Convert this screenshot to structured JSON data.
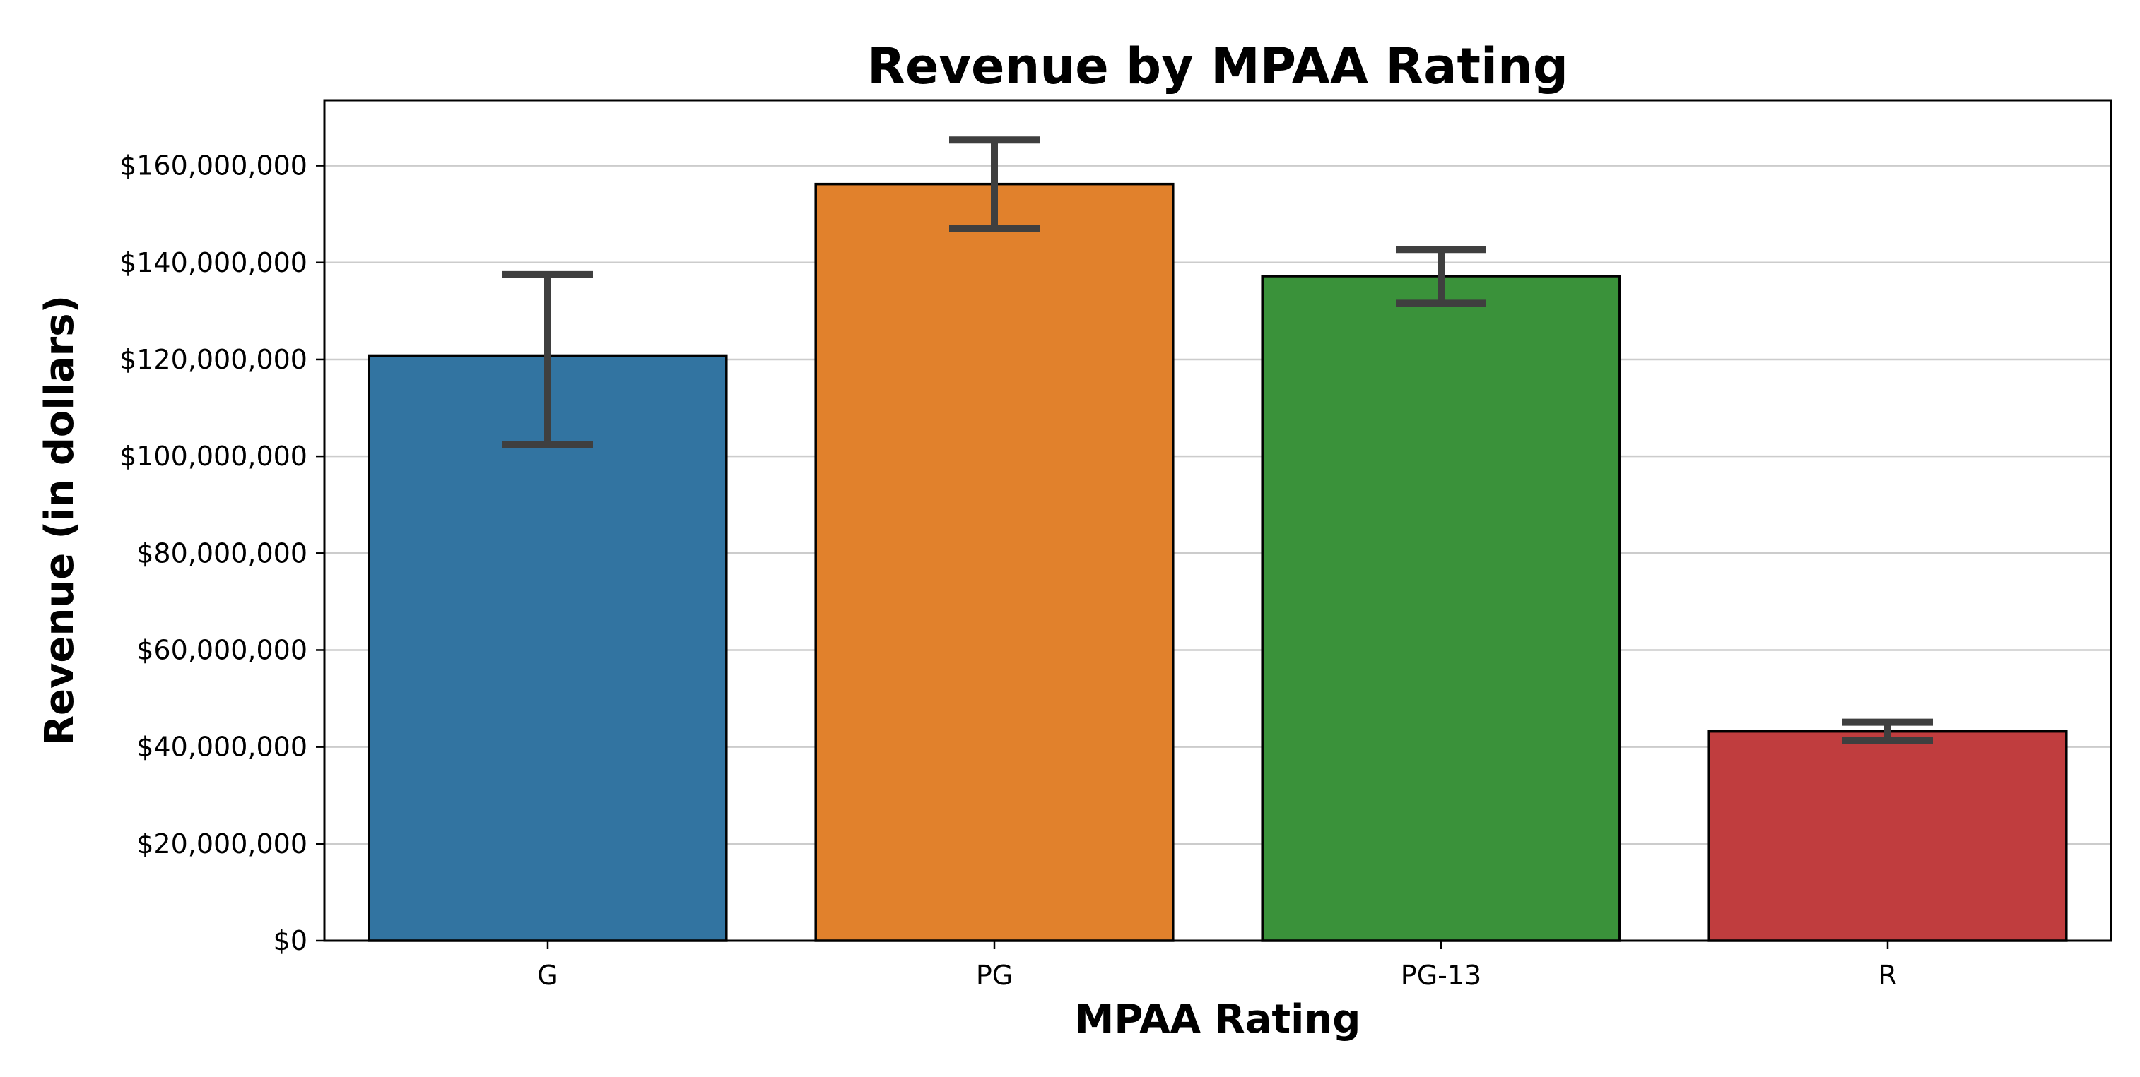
{
  "chart_data": {
    "type": "bar",
    "title": "Revenue by MPAA Rating",
    "xlabel": "MPAA Rating",
    "ylabel": "Revenue (in dollars)",
    "categories": [
      "G",
      "PG",
      "PG-13",
      "R"
    ],
    "values": [
      120800000,
      156200000,
      137200000,
      43200000
    ],
    "error_low": [
      102400000,
      147100000,
      131600000,
      41300000
    ],
    "error_high": [
      137500000,
      165300000,
      142700000,
      45100000
    ],
    "colors": [
      "#3274a1",
      "#e1812c",
      "#3a923a",
      "#c03d3e"
    ],
    "ylim": [
      0,
      173500000
    ],
    "yticks": [
      0,
      20000000,
      40000000,
      60000000,
      80000000,
      100000000,
      120000000,
      140000000,
      160000000
    ],
    "ytick_labels": [
      "$0",
      "$20,000,000",
      "$40,000,000",
      "$60,000,000",
      "$80,000,000",
      "$100,000,000",
      "$120,000,000",
      "$140,000,000",
      "$160,000,000"
    ],
    "grid": "horizontal",
    "legend": "none"
  }
}
